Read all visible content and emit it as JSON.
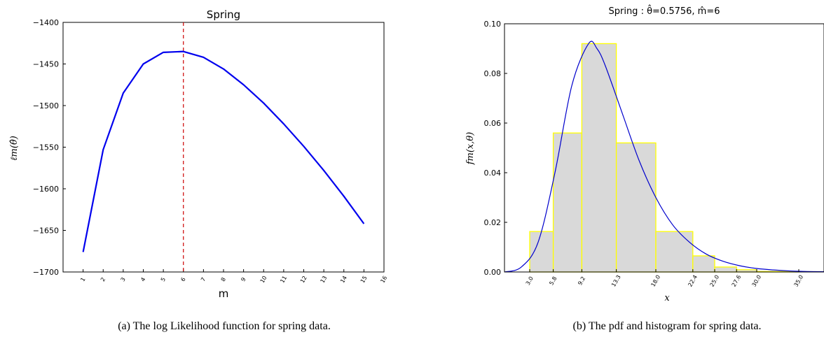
{
  "chart_data": [
    {
      "type": "line",
      "title": "Spring",
      "xlabel": "m",
      "ylabel": "ℓm(θ̂)",
      "x": [
        1,
        2,
        3,
        4,
        5,
        6,
        7,
        8,
        9,
        10,
        11,
        12,
        13,
        14,
        15
      ],
      "series": [
        {
          "values": [
            -1676,
            -1553,
            -1485,
            -1450,
            -1436,
            -1435,
            -1442,
            -1456,
            -1475,
            -1497,
            -1522,
            -1549,
            -1578,
            -1609,
            -1642
          ]
        }
      ],
      "marker_x": 6,
      "xlim": [
        0,
        16
      ],
      "ylim": [
        -1700,
        -1400
      ],
      "xticks": [
        "1",
        "2",
        "3",
        "4",
        "5",
        "6",
        "7",
        "8",
        "9",
        "10",
        "11",
        "12",
        "13",
        "14",
        "15",
        "16"
      ],
      "yticks": [
        "-1700",
        "-1650",
        "-1600",
        "-1550",
        "-1500",
        "-1450",
        "-1400"
      ],
      "line_color": "#0000ee",
      "marker_color": "#cc0000",
      "caption": "(a)  The log Likelihood function for spring data."
    },
    {
      "type": "bar",
      "title": "Spring : θ̂=0.5756, m̂=6",
      "xlabel": "x",
      "ylabel": "fm(x,θ)",
      "bins": [
        {
          "from": 3.0,
          "to": 5.8,
          "value": 0.0163
        },
        {
          "from": 5.8,
          "to": 9.2,
          "value": 0.056
        },
        {
          "from": 9.2,
          "to": 13.3,
          "value": 0.092
        },
        {
          "from": 13.3,
          "to": 18.0,
          "value": 0.052
        },
        {
          "from": 18.0,
          "to": 22.4,
          "value": 0.0163
        },
        {
          "from": 22.4,
          "to": 25.0,
          "value": 0.0065
        },
        {
          "from": 25.0,
          "to": 27.6,
          "value": 0.002
        },
        {
          "from": 27.6,
          "to": 30.0,
          "value": 0.0009
        },
        {
          "from": 30.0,
          "to": 35.0,
          "value": 0.0002
        }
      ],
      "pdf_curve": {
        "x": [
          0,
          2,
          4,
          6,
          8,
          10,
          11,
          12,
          14,
          16,
          18,
          20,
          22,
          24,
          26,
          28,
          30,
          32,
          34,
          36,
          38
        ],
        "y": [
          0,
          0.002,
          0.012,
          0.04,
          0.075,
          0.092,
          0.09,
          0.083,
          0.064,
          0.045,
          0.03,
          0.019,
          0.012,
          0.0072,
          0.0043,
          0.0025,
          0.0014,
          0.0008,
          0.0004,
          0.0002,
          0.0001
        ]
      },
      "xlim": [
        0,
        38
      ],
      "ylim": [
        0,
        0.1
      ],
      "xticks": [
        "3.0",
        "5.8",
        "9.2",
        "13.3",
        "18.0",
        "22.4",
        "25.0",
        "27.6",
        "30.0",
        "35.0"
      ],
      "yticks": [
        "0.00",
        "0.02",
        "0.04",
        "0.06",
        "0.08",
        "0.10"
      ],
      "bar_fill": "#d9d9d9",
      "bar_edge": "#ffff00",
      "curve_color": "#0000cc",
      "caption": "(b)  The pdf and histogram for spring data."
    }
  ]
}
